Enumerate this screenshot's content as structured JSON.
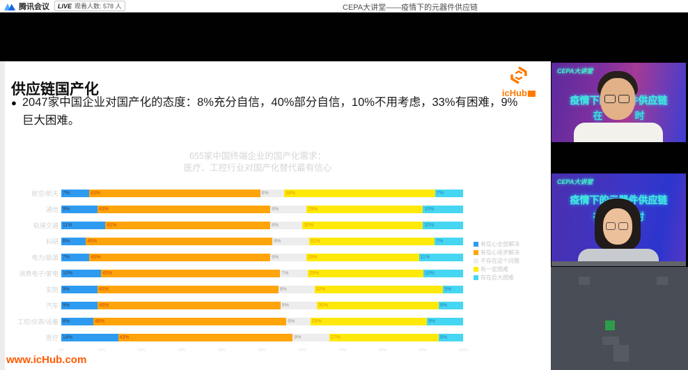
{
  "top_bar": {
    "app_name": "腾讯会议",
    "live_label": "LIVE",
    "viewers_label": "观看人数: 578 人",
    "meeting_title": "CEPA大讲堂——疫情下的元器件供应链"
  },
  "slide": {
    "title": "供应链国产化",
    "bullet_marker": "●",
    "bullet_text": "2047家中国企业对国产化的态度：8%充分自信，40%部分自信，10%不用考虑，33%有困难，9%巨大困难。",
    "logo_text": "icHub",
    "footer_url": "www.icHub.com"
  },
  "chart_data": {
    "type": "bar",
    "orientation": "horizontal",
    "stacked": true,
    "title": "655家中国终端企业的国产化需求：",
    "subtitle": "医疗、工控行业对国产化替代最有信心",
    "categories": [
      "航空/航天",
      "通信",
      "轨道交通",
      "科研",
      "电力/能源",
      "消费电子/家电",
      "安防",
      "汽车",
      "工控/仪表/设备",
      "医疗"
    ],
    "series": [
      {
        "name": "有信心全部解决",
        "color": "#2F9BF0",
        "label_color": "#2c3e60",
        "values": [
          7,
          9,
          11,
          6,
          7,
          10,
          9,
          9,
          8,
          14
        ]
      },
      {
        "name": "有信心逐步解决",
        "color": "#FFA40B",
        "label_color": "#d14900",
        "values": [
          43,
          43,
          41,
          46,
          45,
          45,
          45,
          45,
          48,
          43
        ]
      },
      {
        "name": "不存在这个问题",
        "color": "#EDEDED",
        "label_color": "#9b9b9b",
        "values": [
          6,
          9,
          8,
          9,
          9,
          7,
          9,
          9,
          6,
          9
        ]
      },
      {
        "name": "有一定困难",
        "color": "#FFE90A",
        "label_color": "#e09a00",
        "values": [
          38,
          29,
          30,
          31,
          28,
          29,
          32,
          30,
          29,
          27
        ]
      },
      {
        "name": "存在巨大困难",
        "color": "#45D6F2",
        "label_color": "#2a7fbf",
        "values": [
          7,
          10,
          10,
          7,
          11,
          10,
          5,
          6,
          9,
          6
        ]
      }
    ],
    "x_ticks": [
      "0%",
      "10%",
      "20%",
      "30%",
      "40%",
      "50%",
      "60%",
      "70%",
      "80%",
      "90%",
      "100%"
    ],
    "xlim": [
      0,
      100
    ],
    "legend_position": "right",
    "value_labels": "percent"
  },
  "videos": [
    {
      "badge": "CEPA大讲堂",
      "line1": "疫情下的元器件供应链",
      "line2_left": "在",
      "line2_right": "时"
    },
    {
      "badge": "CEPA大讲堂",
      "line1": "疫情下的元器件供应链",
      "line2_left": "在",
      "line2_right": "时"
    }
  ],
  "colors": {
    "accent_orange": "#ff7a00",
    "footer_orange": "#ff5900",
    "overlay_teal": "#38e6d8",
    "panel_slate": "#494d55",
    "green_square": "#2e9d4b"
  }
}
